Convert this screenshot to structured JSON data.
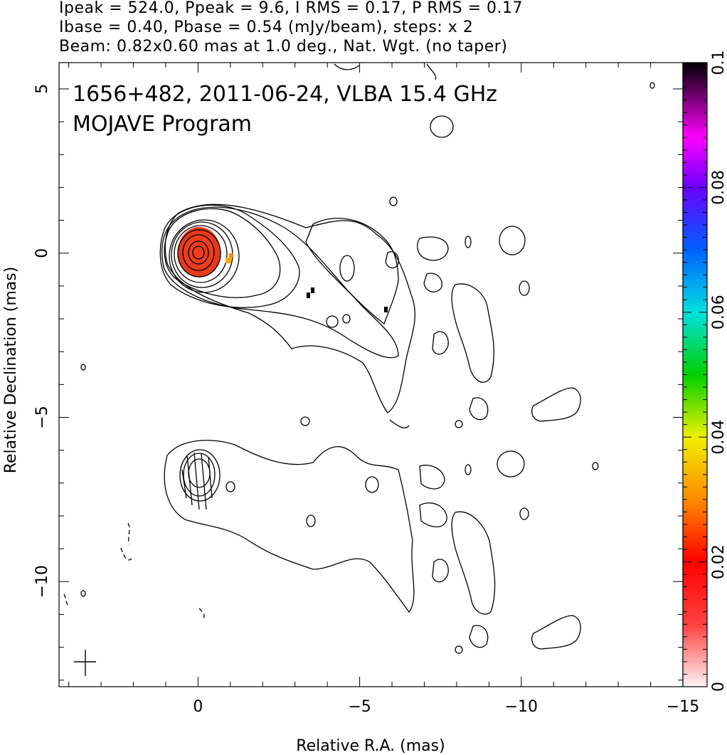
{
  "header": {
    "line1": "Ipeak = 524.0, Ppeak = 9.6, I RMS = 0.17, P RMS = 0.17",
    "line2": "Ibase = 0.40, Pbase = 0.54 (mJy/beam), steps: x 2",
    "line3": "Beam: 0.82x0.60 mas at 1.0 deg., Nat. Wgt. (no taper)"
  },
  "annotation": {
    "source_line": "1656+482, 2011-06-24, VLBA 15.4 GHz",
    "program_line": "MOJAVE Program"
  },
  "chart_data": {
    "type": "heatmap",
    "xlabel": "Relative R.A. (mas)",
    "ylabel": "Relative Declination (mas)",
    "xlim": [
      4.3,
      -15
    ],
    "ylim": [
      -13.2,
      5.8
    ],
    "x_ticks": [
      0,
      -5,
      -10,
      -15
    ],
    "x_tick_labels": [
      "0",
      "−5",
      "−10",
      "−15"
    ],
    "y_ticks": [
      5,
      0,
      -5,
      -10
    ],
    "y_tick_labels": [
      "5",
      "0",
      "−5",
      "−10"
    ],
    "colorbar": {
      "min": 0,
      "max": 0.1,
      "ticks": [
        0,
        0.02,
        0.04,
        0.06,
        0.08,
        0.1
      ],
      "tick_labels": [
        "0",
        "0.02",
        "0.04",
        "0.06",
        "0.08",
        "0.1"
      ]
    },
    "panels": [
      {
        "name": "total intensity contours",
        "core": [
          0,
          0
        ]
      },
      {
        "name": "polarized intensity contours",
        "core": [
          0,
          -7
        ]
      }
    ],
    "fractional_polarization_pixels": [
      {
        "x": 0,
        "y": 0,
        "value": 0.02
      },
      {
        "x": -0.9,
        "y": -0.25,
        "value": 0.03
      },
      {
        "x": -3.5,
        "y": -1.2,
        "value": 0.1
      },
      {
        "x": -5.8,
        "y": -1.7,
        "value": 0.1
      }
    ],
    "beam": {
      "major_mas": 0.82,
      "minor_mas": 0.6,
      "pa_deg": 1.0
    }
  }
}
